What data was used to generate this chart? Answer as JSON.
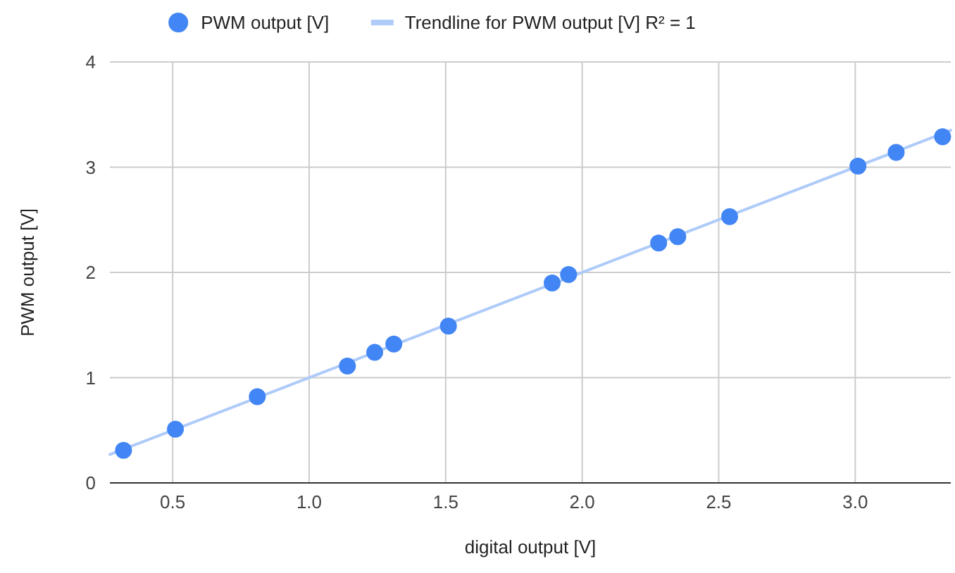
{
  "chart_data": {
    "type": "scatter",
    "xlabel": "digital output [V]",
    "ylabel": "PWM output [V]",
    "xlim": [
      0.27,
      3.35
    ],
    "ylim": [
      0,
      4
    ],
    "xticks": [
      {
        "value": 0.5,
        "label": "0.5"
      },
      {
        "value": 1,
        "label": "1.0"
      },
      {
        "value": 1.5,
        "label": "1.5"
      },
      {
        "value": 2,
        "label": "2.0"
      },
      {
        "value": 2.5,
        "label": "2.5"
      },
      {
        "value": 3,
        "label": "3.0"
      }
    ],
    "yticks": [
      0,
      1,
      2,
      3,
      4
    ],
    "grid": true,
    "legend": "top",
    "marker": "circle",
    "series": [
      {
        "name": "PWM output [V]",
        "color": "#4285f4",
        "x": [
          0.32,
          0.51,
          0.81,
          1.14,
          1.24,
          1.31,
          1.51,
          1.89,
          1.95,
          2.28,
          2.35,
          2.54,
          3.01,
          3.15,
          3.32
        ],
        "values": [
          0.31,
          0.51,
          0.82,
          1.11,
          1.24,
          1.32,
          1.49,
          1.9,
          1.98,
          2.28,
          2.34,
          2.53,
          3.01,
          3.14,
          3.29
        ]
      },
      {
        "name": "Trendline for PWM output [V] R² = 1",
        "type": "line",
        "marker": "none",
        "color": "#aecbfa",
        "x": [
          0.27,
          3.35
        ],
        "values": [
          0.27,
          3.35
        ]
      }
    ]
  }
}
